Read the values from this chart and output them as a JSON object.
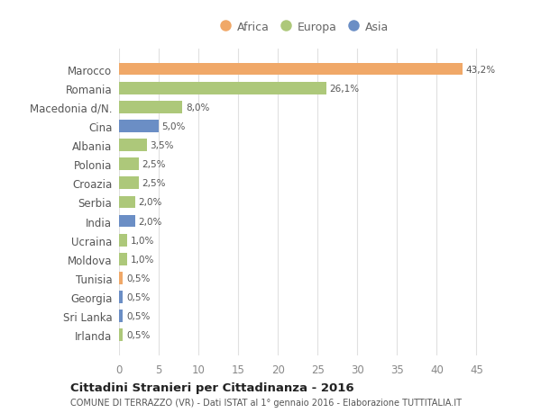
{
  "categories": [
    "Irlanda",
    "Sri Lanka",
    "Georgia",
    "Tunisia",
    "Moldova",
    "Ucraina",
    "India",
    "Serbia",
    "Croazia",
    "Polonia",
    "Albania",
    "Cina",
    "Macedonia d/N.",
    "Romania",
    "Marocco"
  ],
  "values": [
    0.5,
    0.5,
    0.5,
    0.5,
    1.0,
    1.0,
    2.0,
    2.0,
    2.5,
    2.5,
    3.5,
    5.0,
    8.0,
    26.1,
    43.2
  ],
  "colors": [
    "#adc87a",
    "#6b8ec5",
    "#6b8ec5",
    "#f0a868",
    "#adc87a",
    "#adc87a",
    "#6b8ec5",
    "#adc87a",
    "#adc87a",
    "#adc87a",
    "#adc87a",
    "#6b8ec5",
    "#adc87a",
    "#adc87a",
    "#f0a868"
  ],
  "labels": [
    "0,5%",
    "0,5%",
    "0,5%",
    "0,5%",
    "1,0%",
    "1,0%",
    "2,0%",
    "2,0%",
    "2,5%",
    "2,5%",
    "3,5%",
    "5,0%",
    "8,0%",
    "26,1%",
    "43,2%"
  ],
  "legend": [
    {
      "label": "Africa",
      "color": "#f0a868"
    },
    {
      "label": "Europa",
      "color": "#adc87a"
    },
    {
      "label": "Asia",
      "color": "#6b8ec5"
    }
  ],
  "xlim": [
    0,
    47
  ],
  "xticks": [
    0,
    5,
    10,
    15,
    20,
    25,
    30,
    35,
    40,
    45
  ],
  "title": "Cittadini Stranieri per Cittadinanza - 2016",
  "subtitle": "COMUNE DI TERRAZZO (VR) - Dati ISTAT al 1° gennaio 2016 - Elaborazione TUTTITALIA.IT",
  "background_color": "#ffffff",
  "plot_bg_color": "#ffffff",
  "grid_color": "#e0e0e0"
}
